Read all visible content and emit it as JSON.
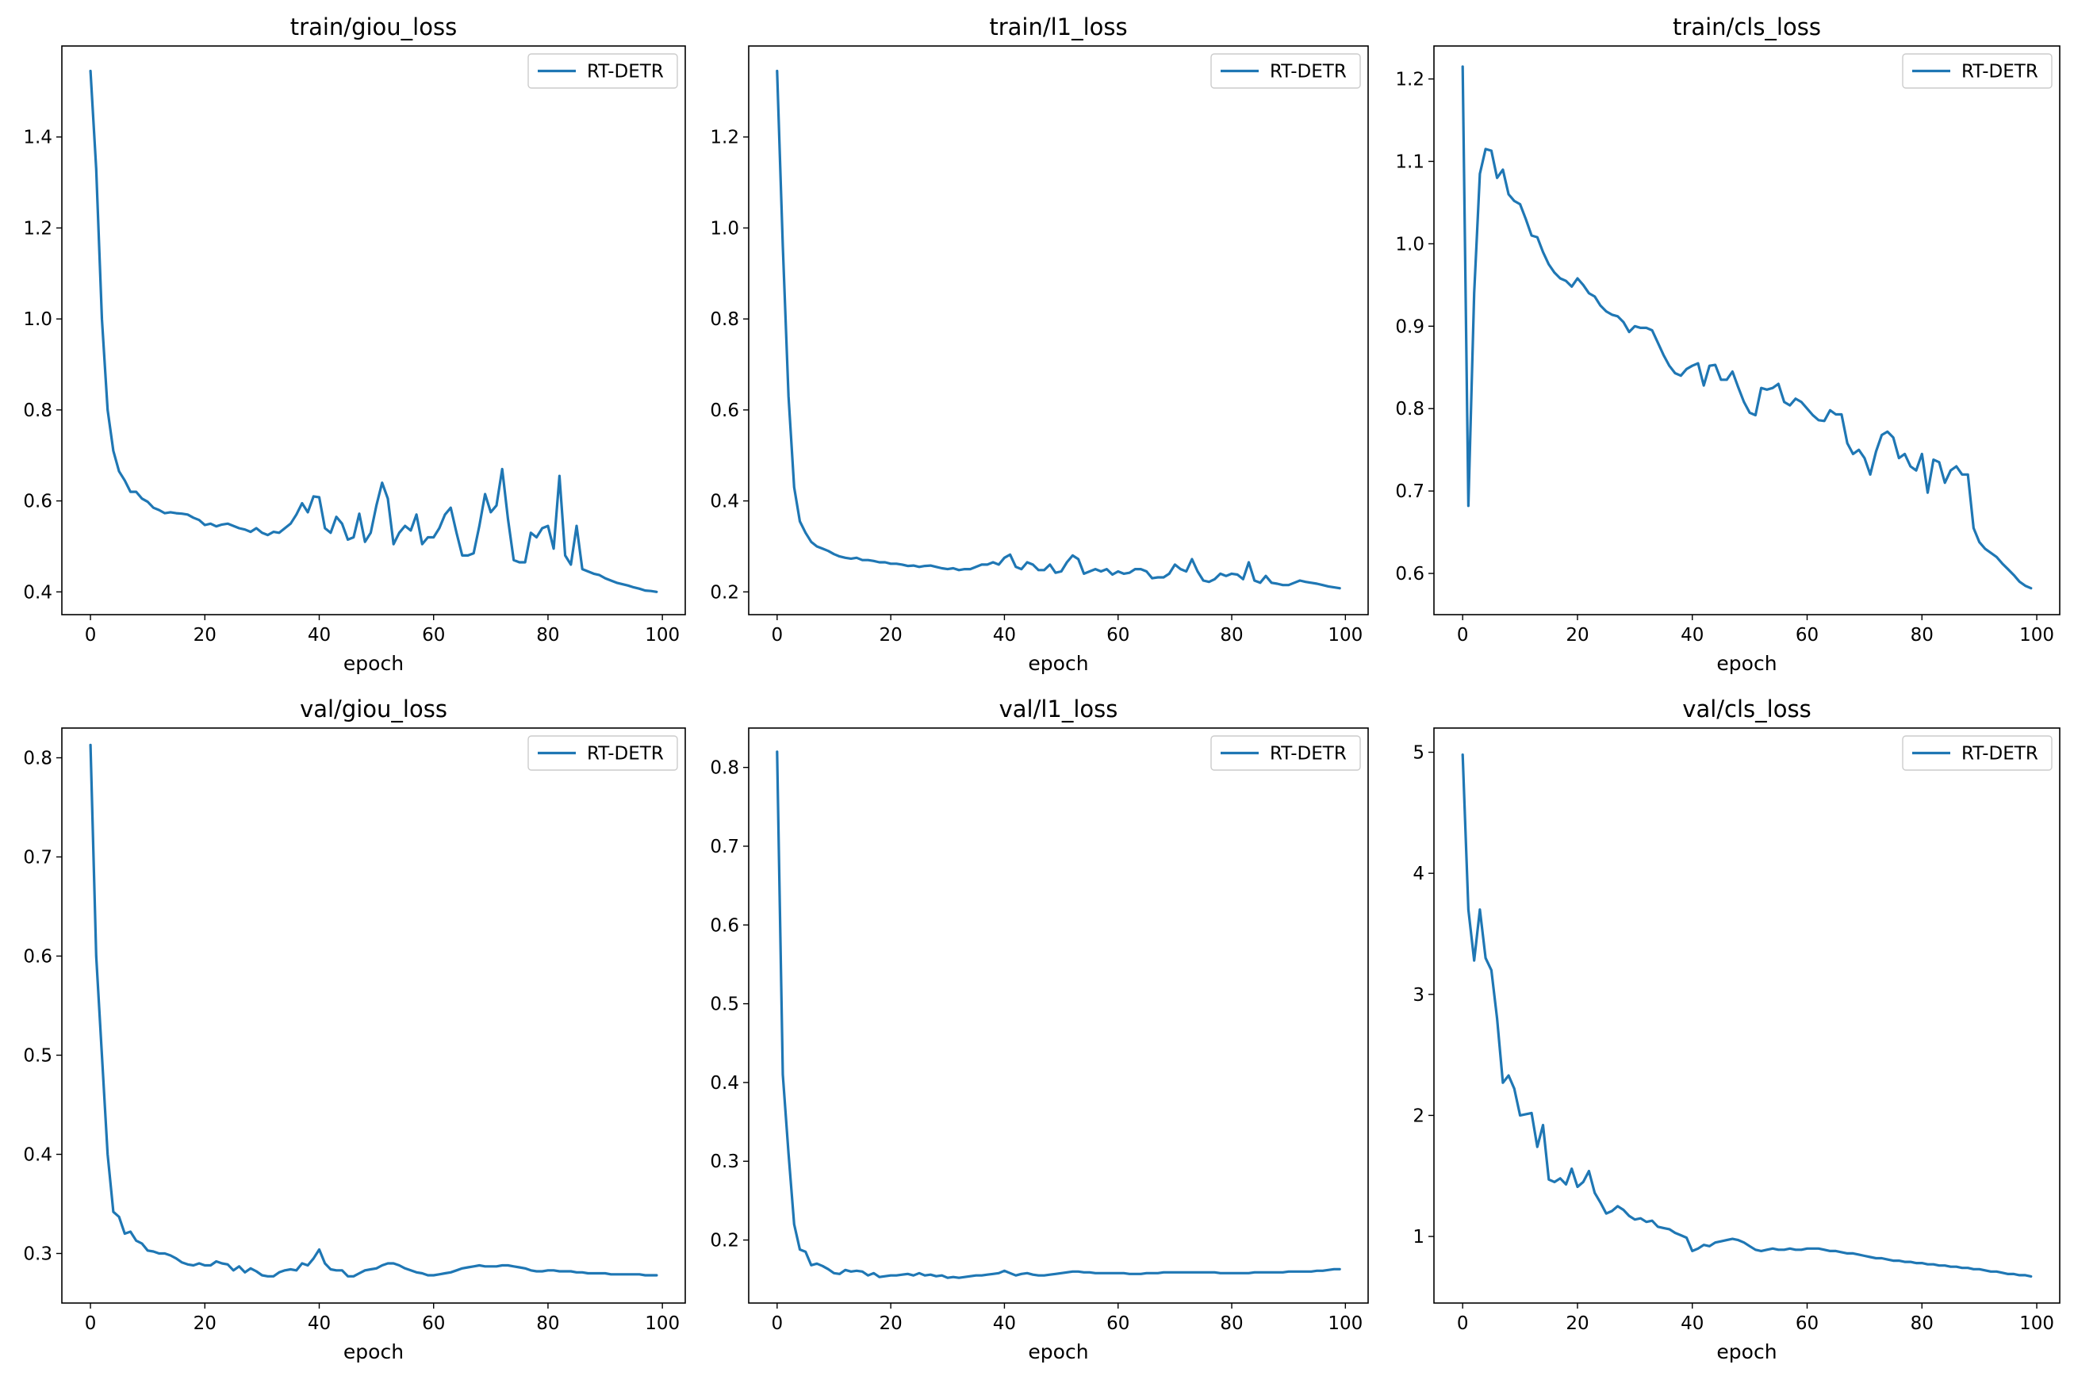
{
  "x": [
    0,
    1,
    2,
    3,
    4,
    5,
    6,
    7,
    8,
    9,
    10,
    11,
    12,
    13,
    14,
    15,
    16,
    17,
    18,
    19,
    20,
    21,
    22,
    23,
    24,
    25,
    26,
    27,
    28,
    29,
    30,
    31,
    32,
    33,
    34,
    35,
    36,
    37,
    38,
    39,
    40,
    41,
    42,
    43,
    44,
    45,
    46,
    47,
    48,
    49,
    50,
    51,
    52,
    53,
    54,
    55,
    56,
    57,
    58,
    59,
    60,
    61,
    62,
    63,
    64,
    65,
    66,
    67,
    68,
    69,
    70,
    71,
    72,
    73,
    74,
    75,
    76,
    77,
    78,
    79,
    80,
    81,
    82,
    83,
    84,
    85,
    86,
    87,
    88,
    89,
    90,
    91,
    92,
    93,
    94,
    95,
    96,
    97,
    98,
    99
  ],
  "chart_data": [
    {
      "type": "line",
      "title": "train/giou_loss",
      "xlabel": "epoch",
      "ylabel": "",
      "xlim": [
        -5,
        104
      ],
      "ylim": [
        0.35,
        1.6
      ],
      "xticks": [
        0,
        20,
        40,
        60,
        80,
        100
      ],
      "xtick_labels": [
        "0",
        "20",
        "40",
        "60",
        "80",
        "100"
      ],
      "yticks": [
        0.4,
        0.6,
        0.8,
        1.0,
        1.2,
        1.4
      ],
      "ytick_labels": [
        "0.4",
        "0.6",
        "0.8",
        "1.0",
        "1.2",
        "1.4"
      ],
      "legend": "top-right",
      "series": [
        {
          "name": "RT-DETR",
          "values": [
            1.545,
            1.33,
            1.0,
            0.8,
            0.71,
            0.665,
            0.645,
            0.62,
            0.62,
            0.605,
            0.598,
            0.585,
            0.58,
            0.573,
            0.575,
            0.573,
            0.572,
            0.57,
            0.563,
            0.558,
            0.547,
            0.55,
            0.544,
            0.548,
            0.55,
            0.545,
            0.54,
            0.537,
            0.532,
            0.54,
            0.53,
            0.525,
            0.532,
            0.53,
            0.54,
            0.55,
            0.57,
            0.595,
            0.575,
            0.61,
            0.608,
            0.54,
            0.53,
            0.565,
            0.55,
            0.515,
            0.52,
            0.572,
            0.51,
            0.53,
            0.59,
            0.64,
            0.605,
            0.505,
            0.53,
            0.545,
            0.535,
            0.57,
            0.505,
            0.52,
            0.52,
            0.54,
            0.57,
            0.585,
            0.53,
            0.48,
            0.48,
            0.485,
            0.545,
            0.615,
            0.575,
            0.59,
            0.67,
            0.56,
            0.47,
            0.465,
            0.465,
            0.53,
            0.52,
            0.54,
            0.545,
            0.495,
            0.655,
            0.48,
            0.46,
            0.545,
            0.45,
            0.445,
            0.44,
            0.437,
            0.43,
            0.425,
            0.42,
            0.417,
            0.414,
            0.41,
            0.407,
            0.403,
            0.402,
            0.4
          ]
        }
      ]
    },
    {
      "type": "line",
      "title": "train/l1_loss",
      "xlabel": "epoch",
      "ylabel": "",
      "xlim": [
        -5,
        104
      ],
      "ylim": [
        0.15,
        1.4
      ],
      "xticks": [
        0,
        20,
        40,
        60,
        80,
        100
      ],
      "xtick_labels": [
        "0",
        "20",
        "40",
        "60",
        "80",
        "100"
      ],
      "yticks": [
        0.2,
        0.4,
        0.6,
        0.8,
        1.0,
        1.2
      ],
      "ytick_labels": [
        "0.2",
        "0.4",
        "0.6",
        "0.8",
        "1.0",
        "1.2"
      ],
      "legend": "top-right",
      "series": [
        {
          "name": "RT-DETR",
          "values": [
            1.345,
            0.96,
            0.63,
            0.43,
            0.355,
            0.33,
            0.31,
            0.3,
            0.295,
            0.29,
            0.283,
            0.278,
            0.275,
            0.273,
            0.275,
            0.27,
            0.27,
            0.268,
            0.265,
            0.265,
            0.262,
            0.262,
            0.26,
            0.257,
            0.258,
            0.255,
            0.257,
            0.258,
            0.255,
            0.252,
            0.25,
            0.252,
            0.248,
            0.25,
            0.25,
            0.255,
            0.26,
            0.26,
            0.265,
            0.26,
            0.275,
            0.282,
            0.255,
            0.25,
            0.265,
            0.26,
            0.248,
            0.248,
            0.26,
            0.242,
            0.245,
            0.265,
            0.28,
            0.272,
            0.24,
            0.245,
            0.25,
            0.245,
            0.25,
            0.238,
            0.245,
            0.24,
            0.242,
            0.25,
            0.25,
            0.245,
            0.23,
            0.232,
            0.232,
            0.24,
            0.26,
            0.25,
            0.245,
            0.272,
            0.245,
            0.225,
            0.222,
            0.228,
            0.24,
            0.235,
            0.24,
            0.238,
            0.228,
            0.265,
            0.225,
            0.22,
            0.235,
            0.22,
            0.218,
            0.215,
            0.215,
            0.22,
            0.225,
            0.222,
            0.22,
            0.218,
            0.215,
            0.212,
            0.21,
            0.208
          ]
        }
      ]
    },
    {
      "type": "line",
      "title": "train/cls_loss",
      "xlabel": "epoch",
      "ylabel": "",
      "xlim": [
        -5,
        104
      ],
      "ylim": [
        0.55,
        1.24
      ],
      "xticks": [
        0,
        20,
        40,
        60,
        80,
        100
      ],
      "xtick_labels": [
        "0",
        "20",
        "40",
        "60",
        "80",
        "100"
      ],
      "yticks": [
        0.6,
        0.7,
        0.8,
        0.9,
        1.0,
        1.1,
        1.2
      ],
      "ytick_labels": [
        "0.6",
        "0.7",
        "0.8",
        "0.9",
        "1.0",
        "1.1",
        "1.2"
      ],
      "legend": "top-right",
      "series": [
        {
          "name": "RT-DETR",
          "values": [
            1.215,
            0.682,
            0.94,
            1.085,
            1.115,
            1.113,
            1.08,
            1.09,
            1.06,
            1.052,
            1.048,
            1.03,
            1.01,
            1.008,
            0.99,
            0.975,
            0.965,
            0.958,
            0.955,
            0.948,
            0.958,
            0.95,
            0.94,
            0.936,
            0.925,
            0.918,
            0.914,
            0.912,
            0.905,
            0.893,
            0.9,
            0.898,
            0.898,
            0.895,
            0.88,
            0.865,
            0.852,
            0.843,
            0.84,
            0.848,
            0.852,
            0.855,
            0.828,
            0.852,
            0.853,
            0.835,
            0.835,
            0.845,
            0.826,
            0.808,
            0.795,
            0.792,
            0.825,
            0.823,
            0.825,
            0.83,
            0.808,
            0.804,
            0.812,
            0.808,
            0.8,
            0.792,
            0.786,
            0.785,
            0.798,
            0.793,
            0.793,
            0.758,
            0.745,
            0.75,
            0.74,
            0.72,
            0.748,
            0.768,
            0.772,
            0.765,
            0.74,
            0.745,
            0.73,
            0.725,
            0.745,
            0.698,
            0.738,
            0.735,
            0.71,
            0.725,
            0.73,
            0.72,
            0.72,
            0.655,
            0.638,
            0.63,
            0.625,
            0.62,
            0.612,
            0.605,
            0.598,
            0.59,
            0.585,
            0.582
          ]
        }
      ]
    },
    {
      "type": "line",
      "title": "val/giou_loss",
      "xlabel": "epoch",
      "ylabel": "",
      "xlim": [
        -5,
        104
      ],
      "ylim": [
        0.25,
        0.83
      ],
      "xticks": [
        0,
        20,
        40,
        60,
        80,
        100
      ],
      "xtick_labels": [
        "0",
        "20",
        "40",
        "60",
        "80",
        "100"
      ],
      "yticks": [
        0.3,
        0.4,
        0.5,
        0.6,
        0.7,
        0.8
      ],
      "ytick_labels": [
        "0.3",
        "0.4",
        "0.5",
        "0.6",
        "0.7",
        "0.8"
      ],
      "legend": "top-right",
      "series": [
        {
          "name": "RT-DETR",
          "values": [
            0.813,
            0.6,
            0.5,
            0.4,
            0.342,
            0.337,
            0.32,
            0.322,
            0.313,
            0.31,
            0.303,
            0.302,
            0.3,
            0.3,
            0.298,
            0.295,
            0.291,
            0.289,
            0.288,
            0.29,
            0.288,
            0.288,
            0.292,
            0.29,
            0.289,
            0.283,
            0.287,
            0.281,
            0.285,
            0.282,
            0.278,
            0.277,
            0.277,
            0.281,
            0.283,
            0.284,
            0.283,
            0.29,
            0.288,
            0.295,
            0.304,
            0.29,
            0.284,
            0.283,
            0.283,
            0.277,
            0.277,
            0.28,
            0.283,
            0.284,
            0.285,
            0.288,
            0.29,
            0.29,
            0.288,
            0.285,
            0.283,
            0.281,
            0.28,
            0.278,
            0.278,
            0.279,
            0.28,
            0.281,
            0.283,
            0.285,
            0.286,
            0.287,
            0.288,
            0.287,
            0.287,
            0.287,
            0.288,
            0.288,
            0.287,
            0.286,
            0.285,
            0.283,
            0.282,
            0.282,
            0.283,
            0.283,
            0.282,
            0.282,
            0.282,
            0.281,
            0.281,
            0.28,
            0.28,
            0.28,
            0.28,
            0.279,
            0.279,
            0.279,
            0.279,
            0.279,
            0.279,
            0.278,
            0.278,
            0.278
          ]
        }
      ]
    },
    {
      "type": "line",
      "title": "val/l1_loss",
      "xlabel": "epoch",
      "ylabel": "",
      "xlim": [
        -5,
        104
      ],
      "ylim": [
        0.12,
        0.85
      ],
      "xticks": [
        0,
        20,
        40,
        60,
        80,
        100
      ],
      "xtick_labels": [
        "0",
        "20",
        "40",
        "60",
        "80",
        "100"
      ],
      "yticks": [
        0.2,
        0.3,
        0.4,
        0.5,
        0.6,
        0.7,
        0.8
      ],
      "ytick_labels": [
        "0.2",
        "0.3",
        "0.4",
        "0.5",
        "0.6",
        "0.7",
        "0.8"
      ],
      "legend": "top-right",
      "series": [
        {
          "name": "RT-DETR",
          "values": [
            0.82,
            0.41,
            0.31,
            0.22,
            0.188,
            0.185,
            0.168,
            0.17,
            0.167,
            0.163,
            0.158,
            0.157,
            0.162,
            0.16,
            0.161,
            0.16,
            0.155,
            0.158,
            0.153,
            0.154,
            0.155,
            0.155,
            0.156,
            0.157,
            0.155,
            0.158,
            0.155,
            0.156,
            0.154,
            0.155,
            0.152,
            0.153,
            0.152,
            0.153,
            0.154,
            0.155,
            0.155,
            0.156,
            0.157,
            0.158,
            0.161,
            0.158,
            0.155,
            0.157,
            0.158,
            0.156,
            0.155,
            0.155,
            0.156,
            0.157,
            0.158,
            0.159,
            0.16,
            0.16,
            0.159,
            0.159,
            0.158,
            0.158,
            0.158,
            0.158,
            0.158,
            0.158,
            0.157,
            0.157,
            0.157,
            0.158,
            0.158,
            0.158,
            0.159,
            0.159,
            0.159,
            0.159,
            0.159,
            0.159,
            0.159,
            0.159,
            0.159,
            0.159,
            0.158,
            0.158,
            0.158,
            0.158,
            0.158,
            0.158,
            0.159,
            0.159,
            0.159,
            0.159,
            0.159,
            0.159,
            0.16,
            0.16,
            0.16,
            0.16,
            0.16,
            0.161,
            0.161,
            0.162,
            0.163,
            0.163
          ]
        }
      ]
    },
    {
      "type": "line",
      "title": "val/cls_loss",
      "xlabel": "epoch",
      "ylabel": "",
      "xlim": [
        -5,
        104
      ],
      "ylim": [
        0.45,
        5.2
      ],
      "xticks": [
        0,
        20,
        40,
        60,
        80,
        100
      ],
      "xtick_labels": [
        "0",
        "20",
        "40",
        "60",
        "80",
        "100"
      ],
      "yticks": [
        1,
        2,
        3,
        4,
        5
      ],
      "ytick_labels": [
        "1",
        "2",
        "3",
        "4",
        "5"
      ],
      "legend": "top-right",
      "series": [
        {
          "name": "RT-DETR",
          "values": [
            4.98,
            3.7,
            3.28,
            3.7,
            3.3,
            3.2,
            2.8,
            2.27,
            2.33,
            2.22,
            2.0,
            2.01,
            2.02,
            1.74,
            1.92,
            1.47,
            1.45,
            1.48,
            1.43,
            1.56,
            1.41,
            1.45,
            1.54,
            1.36,
            1.28,
            1.19,
            1.21,
            1.25,
            1.22,
            1.17,
            1.14,
            1.15,
            1.12,
            1.13,
            1.08,
            1.07,
            1.06,
            1.03,
            1.01,
            0.99,
            0.88,
            0.9,
            0.93,
            0.92,
            0.95,
            0.96,
            0.97,
            0.98,
            0.97,
            0.95,
            0.92,
            0.89,
            0.88,
            0.89,
            0.9,
            0.89,
            0.89,
            0.9,
            0.89,
            0.89,
            0.9,
            0.9,
            0.9,
            0.89,
            0.88,
            0.88,
            0.87,
            0.86,
            0.86,
            0.85,
            0.84,
            0.83,
            0.82,
            0.82,
            0.81,
            0.8,
            0.8,
            0.79,
            0.79,
            0.78,
            0.78,
            0.77,
            0.77,
            0.76,
            0.76,
            0.75,
            0.75,
            0.74,
            0.74,
            0.73,
            0.73,
            0.72,
            0.71,
            0.71,
            0.7,
            0.69,
            0.69,
            0.68,
            0.68,
            0.67
          ]
        }
      ]
    }
  ]
}
